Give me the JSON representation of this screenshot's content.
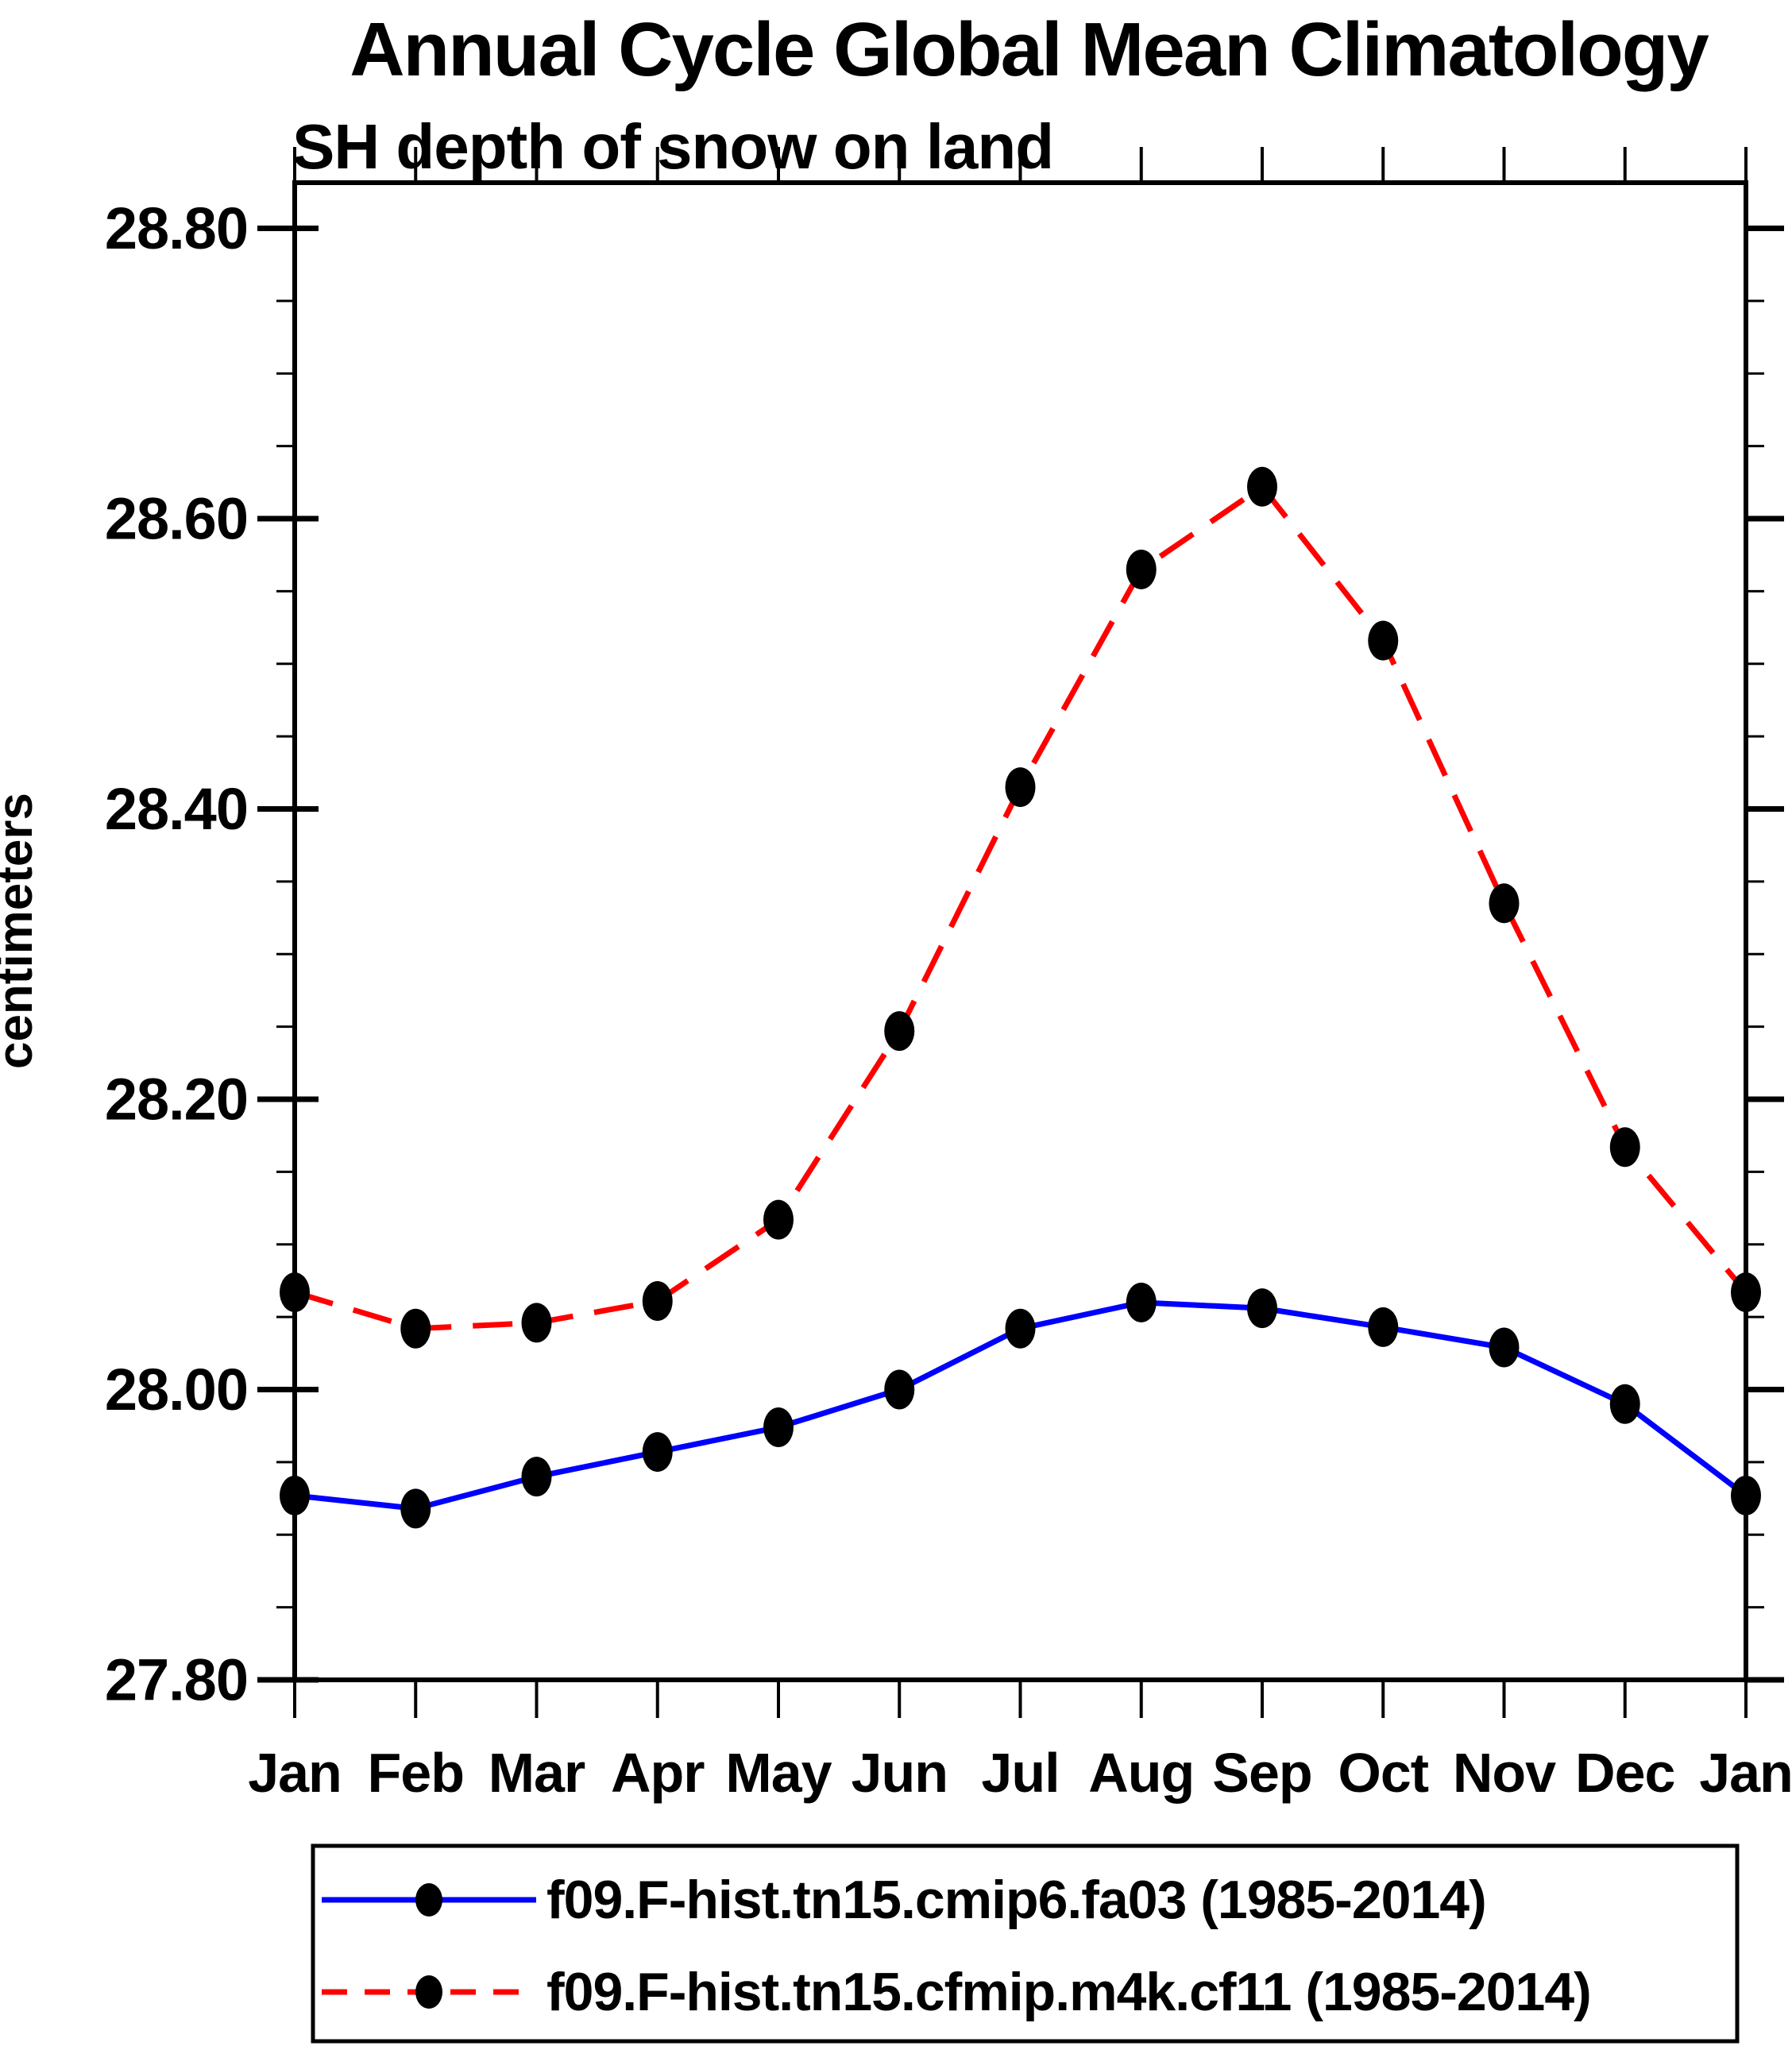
{
  "header": {
    "title": "Annual Cycle Global Mean Climatology",
    "subtitle": "SH depth of snow on land"
  },
  "colors": {
    "series_blue": "#0000ff",
    "series_red": "#ff0000",
    "marker_black": "#000000",
    "axis_black": "#000000",
    "background": "#ffffff"
  },
  "chart_data": {
    "type": "line",
    "title": "Annual Cycle Global Mean Climatology",
    "subtitle": "SH depth of snow on land",
    "xlabel": "",
    "ylabel": "centimeters",
    "categories": [
      "Jan",
      "Feb",
      "Mar",
      "Apr",
      "May",
      "Jun",
      "Jul",
      "Aug",
      "Sep",
      "Oct",
      "Nov",
      "Dec",
      "Jan"
    ],
    "y_tick_labels": [
      "28.80",
      "28.60",
      "28.40",
      "28.20",
      "28.00",
      "27.80"
    ],
    "ylim": [
      27.8,
      28.83
    ],
    "y_major_step": 0.2,
    "y_minor_step": 0.05,
    "grid": false,
    "legend_position": "bottom",
    "series": [
      {
        "name": "f09.F-hist.tn15.cmip6.fa03 (1985-2014)",
        "color": "#0000ff",
        "line_style": "solid",
        "marker": "filled-black-dot",
        "values": [
          27.927,
          27.918,
          27.94,
          27.957,
          27.974,
          28.0,
          28.042,
          28.06,
          28.056,
          28.043,
          28.029,
          27.99,
          27.927
        ]
      },
      {
        "name": "f09.F-hist.tn15.cfmip.m4k.cf11 (1985-2014)",
        "color": "#ff0000",
        "line_style": "dashed",
        "marker": "filled-black-dot",
        "values": [
          28.067,
          28.042,
          28.046,
          28.061,
          28.117,
          28.247,
          28.415,
          28.565,
          28.622,
          28.516,
          28.335,
          28.167,
          28.067
        ]
      }
    ]
  }
}
